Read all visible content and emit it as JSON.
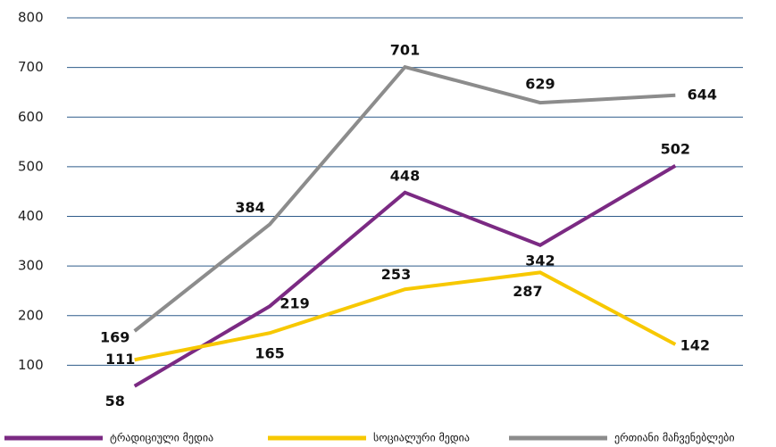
{
  "chart_data": {
    "type": "line",
    "categories": [
      null,
      null,
      null,
      null,
      null
    ],
    "series": [
      {
        "name": "ტრადიციული მედია",
        "color": "#7b2a83",
        "values": [
          58,
          219,
          448,
          342,
          502
        ]
      },
      {
        "name": "სოციალური მედია",
        "color": "#f7c800",
        "values": [
          111,
          165,
          253,
          287,
          142
        ]
      },
      {
        "name": "ერთიანი მაჩვენებლები",
        "color": "#8c8c8c",
        "values": [
          169,
          384,
          701,
          629,
          644
        ]
      }
    ],
    "ylim": [
      0,
      800
    ],
    "yticks": [
      100,
      200,
      300,
      400,
      500,
      600,
      700,
      800
    ],
    "grid": true,
    "legend": "bottom"
  }
}
